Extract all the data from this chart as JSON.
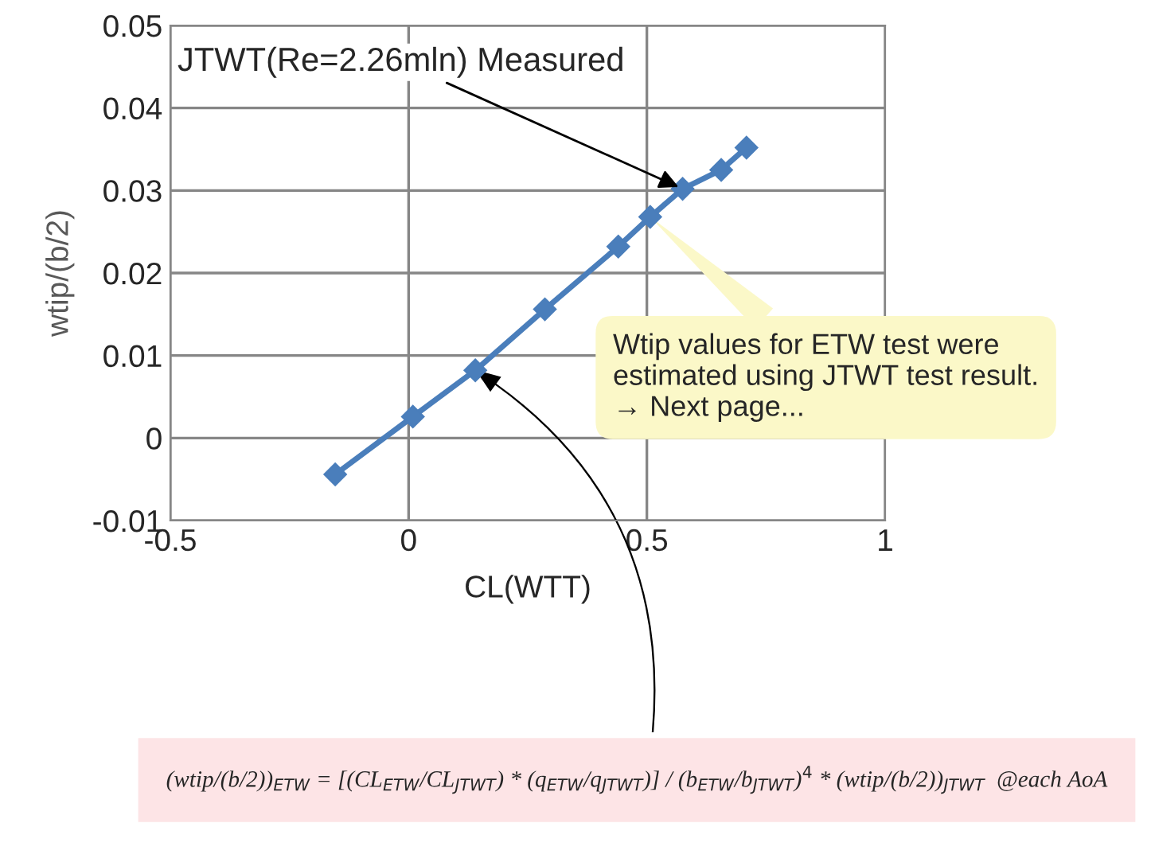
{
  "chart_data": {
    "type": "line",
    "xlabel": "CL(WTT)",
    "ylabel": "wtip/(b/2)",
    "x": [
      -0.154,
      0.009,
      0.14,
      0.286,
      0.44,
      0.507,
      0.575,
      0.656,
      0.709
    ],
    "series": [
      {
        "color": "#4a7ebb",
        "values": [
          -0.0044,
          0.0026,
          0.0082,
          0.0156,
          0.0232,
          0.0268,
          0.0302,
          0.0325,
          0.0352
        ]
      }
    ],
    "xlim": [
      -0.5,
      1
    ],
    "xticks": [
      -0.5,
      0,
      0.5,
      1
    ],
    "ylim": [
      -0.01,
      0.05
    ],
    "yticks": [
      -0.01,
      0,
      0.01,
      0.02,
      0.03,
      0.04,
      0.05
    ],
    "grid": true,
    "marker": "diamond",
    "line_style": "solid",
    "annotations": [
      {
        "text": "JTWT(Re=2.26mln) Measured",
        "x": 0.575,
        "y": 0.0302
      },
      "Wtip values for ETW test were\nestimated using JTWT test result.\n→ Next page...",
      "(wtip/(b/2))$_{ETW}$ = [(CL$_{ETW}$/CL$_{JTWT}$) * (q$_{ETW}$/q$_{JTWT}$)] / (b$_{ETW}$/b$_{JTWT}$)$^{4}$ * (wtip/(b/2))$_{JTWT}$  @each AoA"
    ]
  }
}
